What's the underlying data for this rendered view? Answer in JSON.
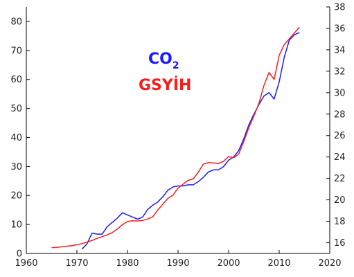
{
  "chart_data": {
    "type": "line",
    "title": "",
    "xlabel": "",
    "ylabel_left": "",
    "ylabel_right": "",
    "xlim": [
      1960,
      2020
    ],
    "ylim_left": [
      0,
      85
    ],
    "ylim_right": [
      15,
      38
    ],
    "x_ticks": [
      1960,
      1970,
      1980,
      1990,
      2000,
      2010,
      2020
    ],
    "y_left_ticks": [
      0,
      10,
      20,
      30,
      40,
      50,
      60,
      70,
      80
    ],
    "y_right_ticks": [
      16,
      18,
      20,
      22,
      24,
      26,
      28,
      30,
      32,
      34,
      36,
      38
    ],
    "grid": false,
    "legend": {
      "placement": "center-left",
      "co2_main": "CO",
      "co2_sub": "2",
      "gdp_label": "GSYİH"
    },
    "series": [
      {
        "key": "co2",
        "color": "#1a1aff",
        "axis": "right",
        "x": [
          1971,
          1972,
          1973,
          1974,
          1975,
          1976,
          1977,
          1978,
          1979,
          1980,
          1981,
          1982,
          1983,
          1984,
          1985,
          1986,
          1987,
          1988,
          1989,
          1990,
          1991,
          1992,
          1993,
          1994,
          1995,
          1996,
          1997,
          1998,
          1999,
          2000,
          2001,
          2002,
          2003,
          2004,
          2005,
          2006,
          2007,
          2008,
          2009,
          2010,
          2011,
          2012,
          2013,
          2014
        ],
        "y": [
          15.4,
          15.9,
          16.9,
          16.8,
          16.8,
          17.5,
          17.9,
          18.3,
          18.8,
          18.6,
          18.4,
          18.2,
          18.4,
          19.1,
          19.5,
          19.8,
          20.3,
          20.9,
          21.2,
          21.3,
          21.3,
          21.4,
          21.4,
          21.7,
          22.1,
          22.6,
          22.8,
          22.8,
          23.1,
          23.7,
          24.0,
          24.6,
          25.7,
          27.0,
          28.0,
          28.9,
          29.7,
          30.0,
          29.4,
          31.0,
          33.3,
          34.9,
          35.4,
          35.6
        ]
      },
      {
        "key": "gdp",
        "color": "#ff1a1a",
        "axis": "left",
        "x": [
          1965,
          1966,
          1967,
          1968,
          1969,
          1970,
          1971,
          1972,
          1973,
          1974,
          1975,
          1976,
          1977,
          1978,
          1979,
          1980,
          1981,
          1982,
          1983,
          1984,
          1985,
          1986,
          1987,
          1988,
          1989,
          1990,
          1991,
          1992,
          1993,
          1994,
          1995,
          1996,
          1997,
          1998,
          1999,
          2000,
          2001,
          2002,
          2003,
          2004,
          2005,
          2006,
          2007,
          2008,
          2009,
          2010,
          2011,
          2012,
          2013,
          2014
        ],
        "y": [
          2.0,
          2.1,
          2.3,
          2.5,
          2.7,
          3.0,
          3.4,
          3.9,
          4.5,
          5.2,
          5.8,
          6.4,
          7.2,
          8.4,
          9.9,
          11.0,
          11.3,
          11.2,
          11.4,
          11.9,
          12.6,
          15.0,
          17.0,
          19.0,
          20.1,
          22.5,
          23.9,
          25.2,
          25.7,
          28.0,
          30.8,
          31.3,
          31.2,
          31.0,
          31.8,
          33.4,
          33.0,
          34.3,
          38.6,
          43.4,
          47.4,
          51.8,
          58.0,
          62.4,
          60.0,
          68.3,
          72.0,
          74.0,
          76.0,
          78.0
        ]
      }
    ]
  }
}
